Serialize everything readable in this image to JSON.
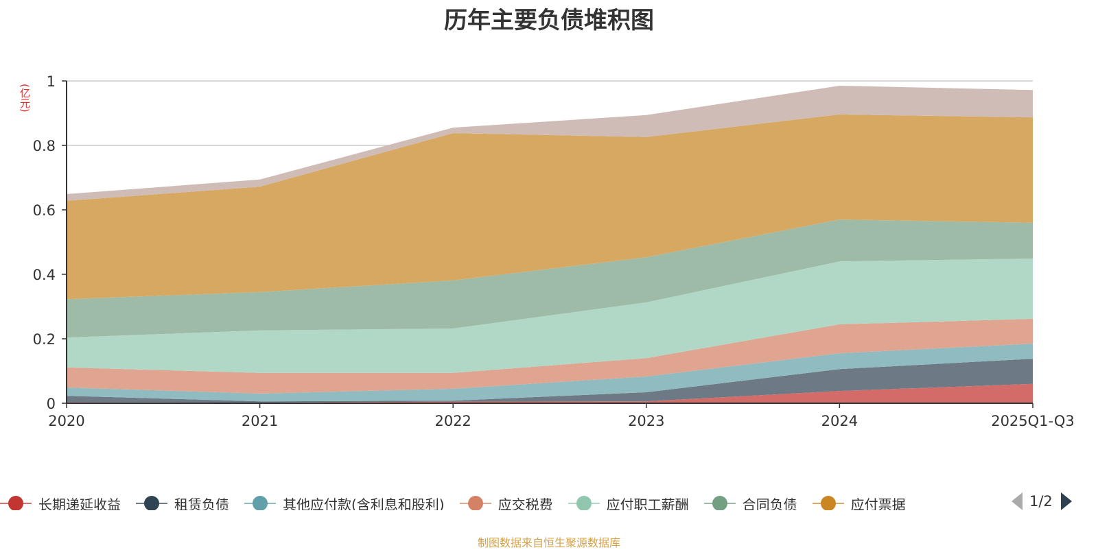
{
  "title": "历年主要负债堆积图",
  "unit_label": "(亿元)",
  "footer": "制图数据来自恒生聚源数据库",
  "pager": {
    "text": "1/2"
  },
  "chart_data": {
    "type": "area",
    "stacked": true,
    "title": "历年主要负债堆积图",
    "xlabel": "",
    "ylabel": "(亿元)",
    "categories": [
      "2020",
      "2021",
      "2022",
      "2023",
      "2024",
      "2025Q1-Q3"
    ],
    "ylim": [
      0,
      1
    ],
    "yticks": [
      "0",
      "0.2",
      "0.4",
      "0.6",
      "0.8",
      "1"
    ],
    "grid": true,
    "legend_position": "bottom",
    "series": [
      {
        "name": "长期递延收益",
        "color": "#c23531",
        "fill": "#d36b68",
        "values": [
          0.003,
          0.002,
          0.005,
          0.006,
          0.038,
          0.06
        ]
      },
      {
        "name": "租赁负债",
        "color": "#2f4554",
        "fill": "#6d7a85",
        "values": [
          0.02,
          0.004,
          0.003,
          0.028,
          0.068,
          0.078
        ]
      },
      {
        "name": "其他应付款(含利息和股利)",
        "color": "#61a0a8",
        "fill": "#8fbbc1",
        "values": [
          0.026,
          0.024,
          0.037,
          0.049,
          0.049,
          0.047
        ]
      },
      {
        "name": "应交税费",
        "color": "#d48265",
        "fill": "#e0a590",
        "values": [
          0.062,
          0.064,
          0.049,
          0.057,
          0.09,
          0.077
        ]
      },
      {
        "name": "应付职工薪酬",
        "color": "#91c7ae",
        "fill": "#b1d8c6",
        "values": [
          0.093,
          0.132,
          0.138,
          0.173,
          0.195,
          0.187
        ]
      },
      {
        "name": "合同负债",
        "color": "#749f83",
        "fill": "#9ebba8",
        "values": [
          0.119,
          0.119,
          0.149,
          0.14,
          0.13,
          0.111
        ]
      },
      {
        "name": "应付票据",
        "color": "#ca8622",
        "fill": "#d7a862",
        "values": [
          0.305,
          0.327,
          0.457,
          0.373,
          0.326,
          0.327
        ]
      },
      {
        "name": "",
        "color": "#bda29a",
        "fill": "#d0bcb6",
        "values": [
          0.021,
          0.022,
          0.017,
          0.068,
          0.089,
          0.085
        ]
      }
    ]
  }
}
